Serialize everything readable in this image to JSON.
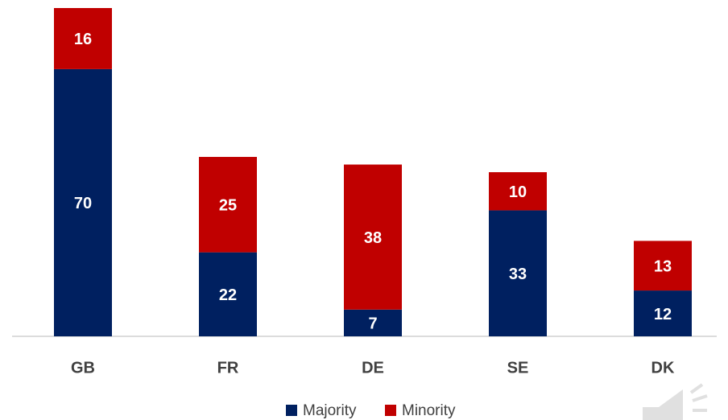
{
  "chart_data": {
    "type": "stacked_bar",
    "categories": [
      "GB",
      "FR",
      "DE",
      "SE",
      "DK"
    ],
    "series": [
      {
        "name": "Majority",
        "color": "#002060",
        "values": [
          70,
          22,
          7,
          33,
          12
        ]
      },
      {
        "name": "Minority",
        "color": "#c00000",
        "values": [
          16,
          25,
          38,
          10,
          13
        ]
      }
    ],
    "legend": "bottom"
  }
}
